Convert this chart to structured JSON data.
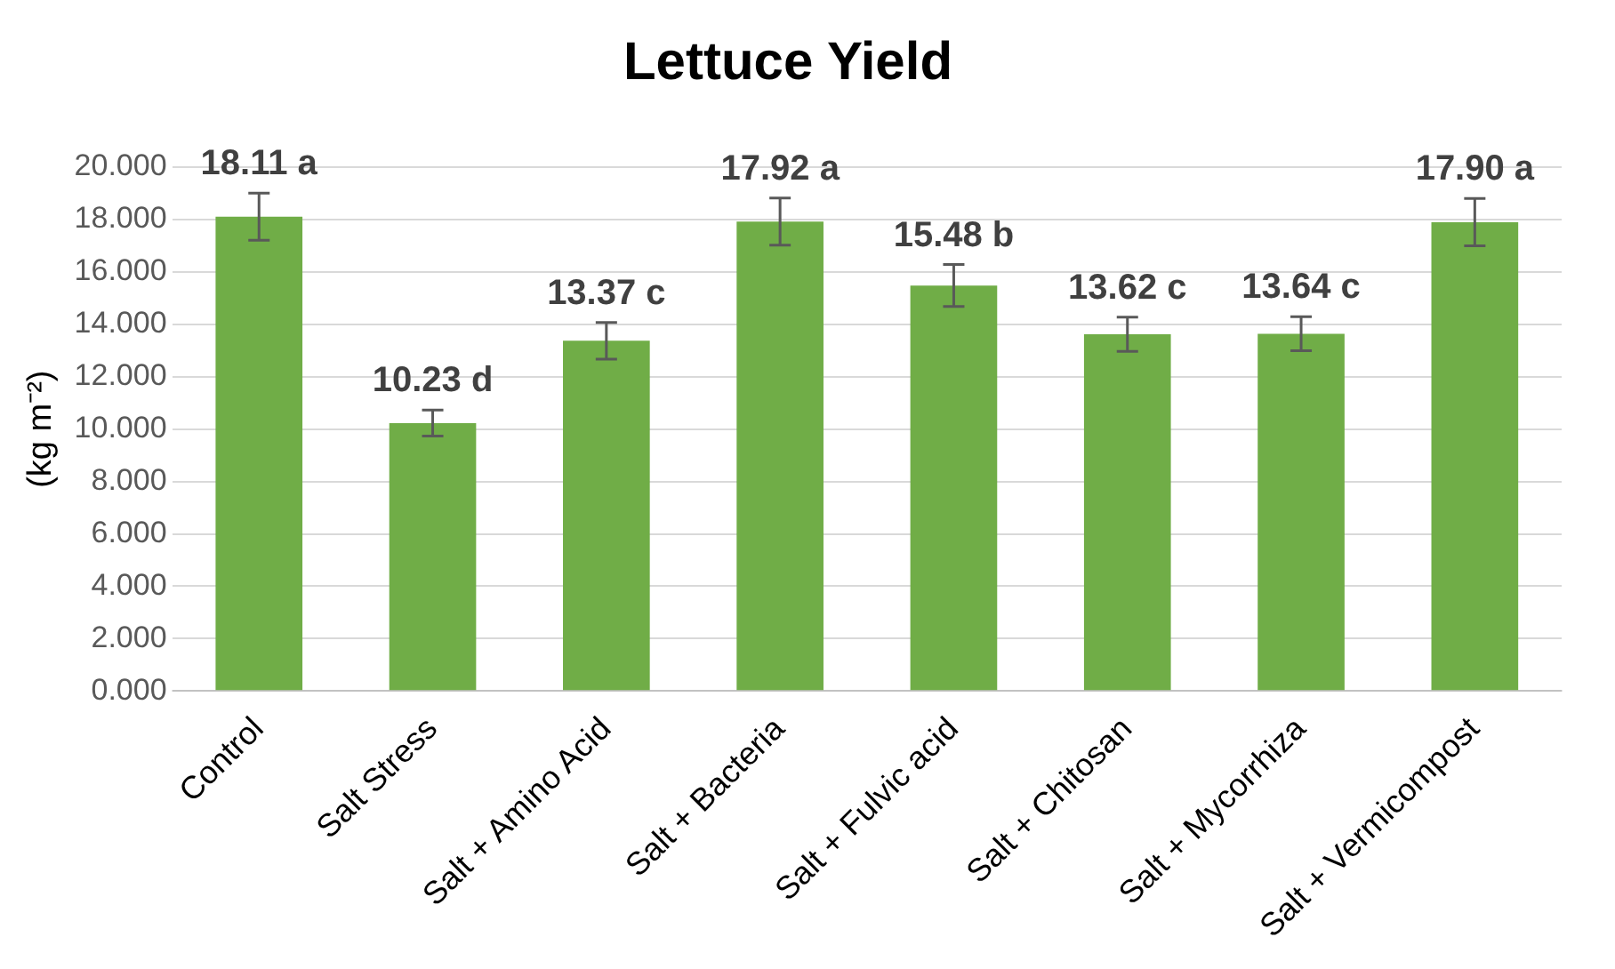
{
  "chart_data": {
    "type": "bar",
    "title": "Lettuce Yield",
    "ylabel": "(kg m⁻²)",
    "categories": [
      "Control",
      "Salt Stress",
      "Salt + Amino Acid",
      "Salt + Bacteria",
      "Salt + Fulvic acid",
      "Salt + Chitosan",
      "Salt + Mycorrhiza",
      "Salt + Vermicompost"
    ],
    "values": [
      18.11,
      10.23,
      13.37,
      17.92,
      15.48,
      13.62,
      13.64,
      17.9
    ],
    "errors": [
      0.9,
      0.5,
      0.7,
      0.9,
      0.8,
      0.65,
      0.65,
      0.9
    ],
    "value_labels": [
      "18.11 a",
      "10.23 d",
      "13.37 c",
      "17.92 a",
      "15.48 b",
      "13.62 c",
      "13.64 c",
      "17.90 a"
    ],
    "color": "#70ad47",
    "ylim": [
      0,
      20
    ],
    "yticks": [
      {
        "value": 0,
        "label": "0.000"
      },
      {
        "value": 2,
        "label": "2.000"
      },
      {
        "value": 4,
        "label": "4.000"
      },
      {
        "value": 6,
        "label": "6.000"
      },
      {
        "value": 8,
        "label": "8.000"
      },
      {
        "value": 10,
        "label": "10.000"
      },
      {
        "value": 12,
        "label": "12.000"
      },
      {
        "value": 14,
        "label": "14.000"
      },
      {
        "value": 16,
        "label": "16.000"
      },
      {
        "value": 18,
        "label": "18.000"
      },
      {
        "value": 20,
        "label": "20.000"
      }
    ],
    "grid": "y",
    "legend": false
  }
}
